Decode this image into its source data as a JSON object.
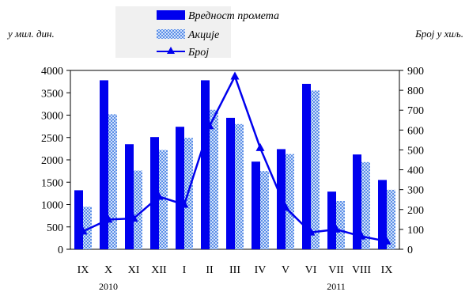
{
  "chart_data": {
    "type": "bar",
    "categories": [
      "IX",
      "X",
      "XI",
      "XII",
      "I",
      "II",
      "III",
      "IV",
      "V",
      "VI",
      "VII",
      "VIII",
      "IX"
    ],
    "year_labels": [
      {
        "label": "2010",
        "category_index": 1
      },
      {
        "label": "2011",
        "category_index": 10
      }
    ],
    "left_axis": {
      "unit_label": "у мил. дин.",
      "ylim": [
        0,
        4000
      ],
      "ticks": [
        "0",
        "500",
        "1000",
        "1500",
        "2000",
        "2500",
        "3000",
        "3500",
        "4000"
      ]
    },
    "right_axis": {
      "unit_label": "Број у хиљ.",
      "ylim": [
        0,
        900
      ],
      "ticks": [
        "0",
        "100",
        "200",
        "300",
        "400",
        "500",
        "600",
        "700",
        "800",
        "900"
      ]
    },
    "series": [
      {
        "name": "Вредност промета",
        "kind": "bar",
        "axis": "left",
        "color": "#0000ee",
        "values": [
          1320,
          3780,
          2350,
          2510,
          2740,
          3780,
          2940,
          1960,
          2240,
          3700,
          1290,
          2120,
          1550
        ]
      },
      {
        "name": "Акције",
        "kind": "bar-pattern",
        "axis": "left",
        "color": "#8fb4ee",
        "values": [
          950,
          3020,
          1760,
          2220,
          2490,
          3120,
          2800,
          1750,
          2130,
          3550,
          1080,
          1950,
          1330
        ]
      },
      {
        "name": "Број",
        "kind": "line",
        "axis": "right",
        "color": "#0000ee",
        "marker": "triangle",
        "values": [
          90,
          150,
          155,
          265,
          225,
          620,
          870,
          510,
          210,
          85,
          100,
          65,
          40
        ]
      }
    ],
    "legend_position": "top-center",
    "grid": false
  }
}
